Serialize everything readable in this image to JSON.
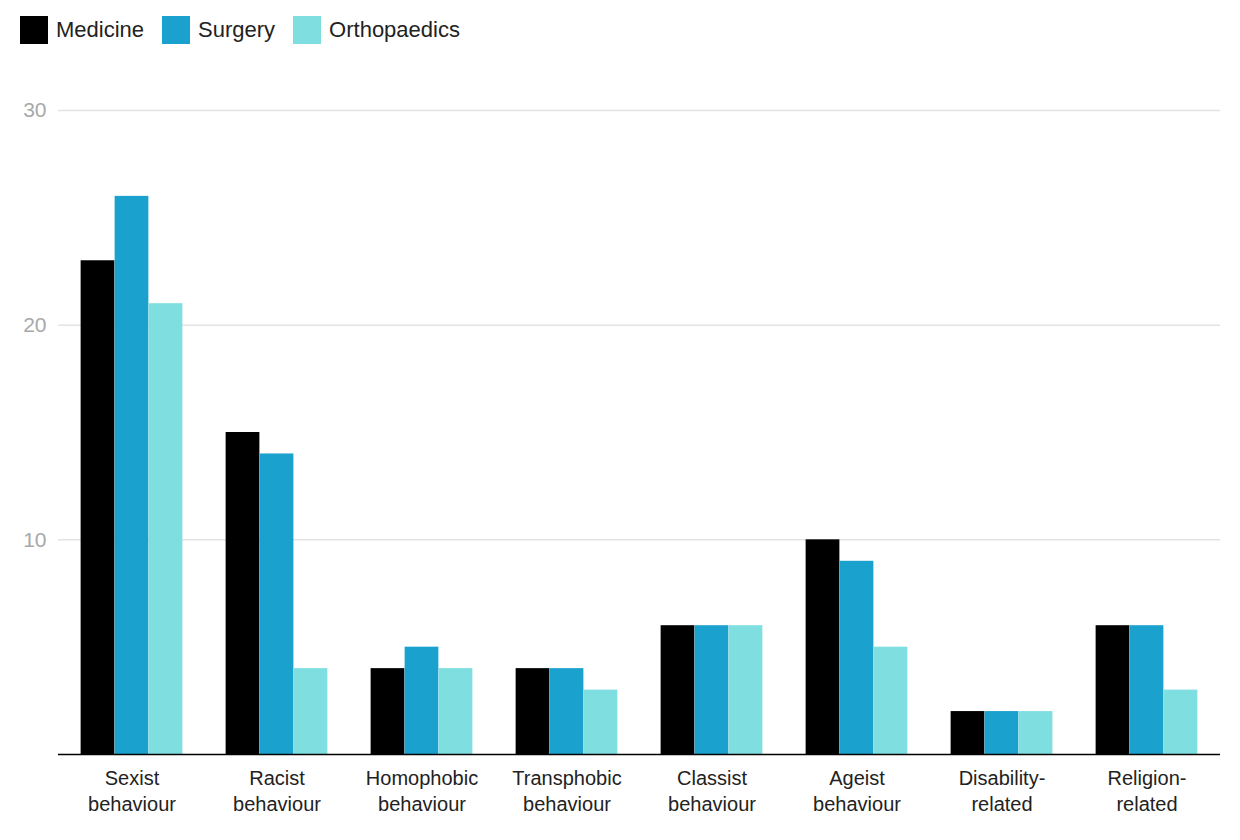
{
  "chart_data": {
    "type": "bar",
    "categories": [
      "Sexist behaviour",
      "Racist behaviour",
      "Homophobic behaviour",
      "Transphobic behaviour",
      "Classist behaviour",
      "Ageist behaviour",
      "Disability-related",
      "Religion-related"
    ],
    "series": [
      {
        "name": "Medicine",
        "color": "#000000",
        "values": [
          23,
          15,
          4,
          4,
          6,
          10,
          2,
          6
        ]
      },
      {
        "name": "Surgery",
        "color": "#1ba1cd",
        "values": [
          26,
          14,
          5,
          4,
          6,
          9,
          2,
          6
        ]
      },
      {
        "name": "Orthopaedics",
        "color": "#7fdfe0",
        "values": [
          21,
          4,
          4,
          3,
          6,
          5,
          2,
          3
        ]
      }
    ],
    "ylim": [
      0,
      30
    ],
    "yticks": [
      10,
      20,
      30
    ],
    "grid": true,
    "legend": "top-left"
  }
}
